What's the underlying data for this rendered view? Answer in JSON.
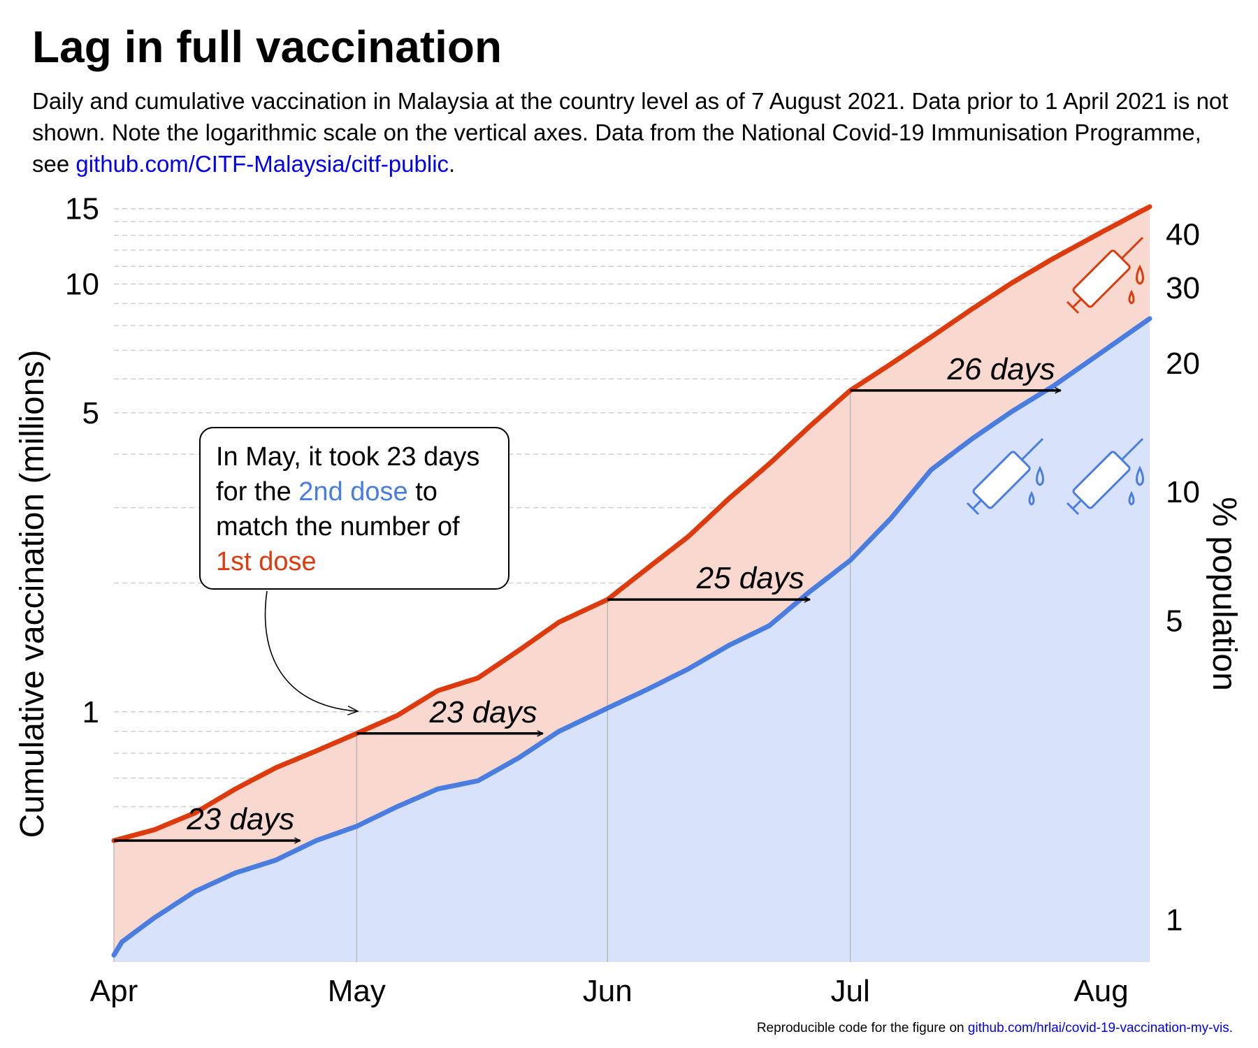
{
  "title": "Lag in full vaccination",
  "subtitle": {
    "text": "Daily and cumulative vaccination in Malaysia at the country level as of 7 August 2021. Data prior to 1 April 2021 is not shown. Note the logarithmic scale on the vertical axes. Data from the National Covid-19 Immunisation Programme, see ",
    "link": "github.com/CITF-Malaysia/citf-public",
    "end": "."
  },
  "footer": {
    "text": "Reproducible code for the figure on ",
    "link": "github.com/hrlai/covid-19-vaccination-my-vis."
  },
  "callout": {
    "part1": "In May, it took 23 days for the ",
    "dose2": "2nd dose",
    "part2": " to match the number of ",
    "dose1": "1st dose"
  },
  "colors": {
    "dose1": "#dd3b0e",
    "dose2": "#4a7de0",
    "fill1": "#f8d8cf",
    "fill2": "#d8e3fb"
  },
  "chart_data": {
    "type": "area",
    "scale_y": "log",
    "ylabel": "Cumulative vaccination (millions)",
    "ylabel_right": "% population",
    "y_ticks": [
      1,
      5,
      10,
      15
    ],
    "y_ticks_right": [
      1,
      5,
      10,
      20,
      30,
      40
    ],
    "x_ticks": [
      "Apr",
      "May",
      "Jun",
      "Jul",
      "Aug"
    ],
    "x_tick_dates": [
      "2021-04-01",
      "2021-05-01",
      "2021-06-01",
      "2021-07-01",
      "2021-08-01"
    ],
    "x_range": [
      "2021-04-01",
      "2021-08-07"
    ],
    "y_range": [
      0.26,
      15.5
    ],
    "series": [
      {
        "name": "1st dose",
        "x": [
          "2021-04-01",
          "2021-04-06",
          "2021-04-11",
          "2021-04-16",
          "2021-04-21",
          "2021-04-26",
          "2021-05-01",
          "2021-05-06",
          "2021-05-11",
          "2021-05-16",
          "2021-05-21",
          "2021-05-26",
          "2021-06-01",
          "2021-06-06",
          "2021-06-11",
          "2021-06-16",
          "2021-06-21",
          "2021-06-26",
          "2021-07-01",
          "2021-07-06",
          "2021-07-11",
          "2021-07-16",
          "2021-07-21",
          "2021-07-26",
          "2021-08-01",
          "2021-08-07"
        ],
        "values": [
          0.5,
          0.53,
          0.58,
          0.66,
          0.74,
          0.81,
          0.89,
          0.98,
          1.12,
          1.2,
          1.39,
          1.62,
          1.83,
          2.17,
          2.57,
          3.15,
          3.8,
          4.65,
          5.64,
          6.5,
          7.52,
          8.73,
          10.07,
          11.45,
          13.2,
          15.16
        ]
      },
      {
        "name": "2nd dose",
        "x": [
          "2021-04-01",
          "2021-04-02",
          "2021-04-06",
          "2021-04-11",
          "2021-04-16",
          "2021-04-21",
          "2021-04-26",
          "2021-05-01",
          "2021-05-06",
          "2021-05-11",
          "2021-05-16",
          "2021-05-21",
          "2021-05-26",
          "2021-06-01",
          "2021-06-06",
          "2021-06-11",
          "2021-06-16",
          "2021-06-21",
          "2021-06-26",
          "2021-07-01",
          "2021-07-06",
          "2021-07-11",
          "2021-07-16",
          "2021-07-21",
          "2021-07-26",
          "2021-08-01",
          "2021-08-07"
        ],
        "values": [
          0.27,
          0.29,
          0.33,
          0.38,
          0.42,
          0.45,
          0.5,
          0.54,
          0.6,
          0.66,
          0.69,
          0.78,
          0.9,
          1.02,
          1.13,
          1.26,
          1.43,
          1.59,
          1.91,
          2.26,
          2.83,
          3.68,
          4.34,
          5.04,
          5.76,
          6.91,
          8.3
        ]
      }
    ],
    "annotations": [
      {
        "label": "23 days",
        "from": "2021-04-01",
        "to": "2021-04-24",
        "y": 0.5
      },
      {
        "label": "23 days",
        "from": "2021-05-01",
        "to": "2021-05-24",
        "y": 0.89
      },
      {
        "label": "25 days",
        "from": "2021-06-01",
        "to": "2021-06-26",
        "y": 1.83
      },
      {
        "label": "26 days",
        "from": "2021-07-01",
        "to": "2021-07-27",
        "y": 5.64
      }
    ]
  }
}
